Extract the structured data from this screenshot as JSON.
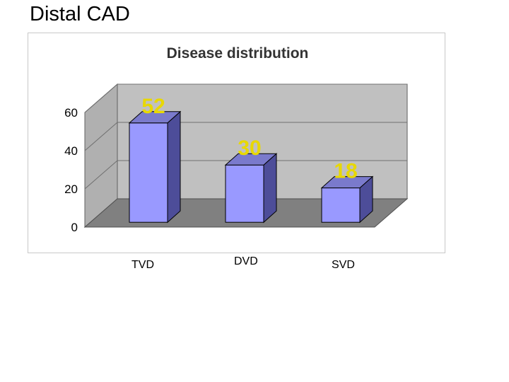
{
  "slide": {
    "title": "Distal CAD"
  },
  "chart_data": {
    "type": "bar",
    "title": "Disease distribution",
    "categories": [
      "TVD",
      "DVD",
      "SVD"
    ],
    "values": [
      52,
      30,
      18
    ],
    "data_labels": [
      "52",
      "30",
      "18"
    ],
    "xlabel": "",
    "ylabel": "",
    "ylim": [
      0,
      60
    ],
    "yticks": [
      "0",
      "20",
      "40",
      "60"
    ],
    "grid": true,
    "colors": {
      "bar_front": "#9999ff",
      "bar_side": "#4d4d99",
      "bar_top": "#7a7acc",
      "back_wall": "#c0c0c0",
      "side_wall": "#b0b0b0",
      "floor": "#808080",
      "data_label": "#e8d800"
    }
  }
}
